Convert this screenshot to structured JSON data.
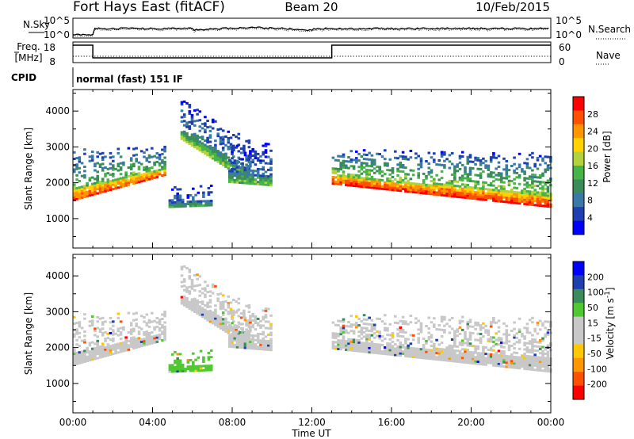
{
  "header": {
    "station": "Fort Hays East (fitACF)",
    "beam": "Beam 20",
    "date": "10/Feb/2015"
  },
  "params": {
    "nsky_label": "N.Sky",
    "nsearch_label": "N.Search",
    "freq_label_1": "Freq.",
    "freq_label_2": "[MHz]",
    "nave_label": "Nave",
    "cpid_label": "CPID",
    "cpid_value": "normal (fast) 151 IF",
    "noise_ticks_left": [
      "10^5",
      "10^0"
    ],
    "noise_ticks_right": [
      "10^5",
      "10^0"
    ],
    "freq_ticks": [
      "18",
      "8"
    ],
    "nave_ticks": [
      "60",
      "0"
    ]
  },
  "colors": {
    "power": [
      "#0000ff",
      "#1f3fb0",
      "#3a78a8",
      "#3c8c5a",
      "#46b446",
      "#b4d23c",
      "#ffd200",
      "#ff9600",
      "#ff5000",
      "#ff0000"
    ],
    "velocity": [
      "#ff0000",
      "#ff5000",
      "#ff9600",
      "#ffc800",
      "#c8c8c8",
      "#c8c8c8",
      "#50c832",
      "#3c8c5a",
      "#1f3fb0",
      "#0000ff"
    ]
  },
  "chart_data": [
    {
      "type": "heatmap",
      "title": "Power",
      "ylabel": "Slant Range [km]",
      "yticks": [
        1000,
        2000,
        3000,
        4000
      ],
      "ylim": [
        180,
        4600
      ],
      "xlim": [
        0,
        24
      ],
      "colorbar": {
        "label": "Power [dB]",
        "ticks": [
          "4",
          "8",
          "12",
          "16",
          "20",
          "24",
          "28"
        ],
        "range": [
          0,
          30
        ]
      },
      "echo_bands": [
        {
          "name": "early",
          "t_start": 0.0,
          "t_end": 4.6,
          "r_low_start": 1500,
          "r_low_end": 2200,
          "r_high_start": 2900,
          "r_high_end": 3000,
          "peak_dB": 26
        },
        {
          "name": "midday-arc",
          "t_start": 5.4,
          "t_end": 8.8,
          "r_low_start": 3200,
          "r_low_end": 2000,
          "r_high_start": 4300,
          "r_high_end": 3200,
          "peak_dB": 16
        },
        {
          "name": "afternoon-cluster",
          "t_start": 7.8,
          "t_end": 10.0,
          "r_low_start": 2000,
          "r_low_end": 1900,
          "r_high_start": 3000,
          "r_high_end": 3100,
          "peak_dB": 14
        },
        {
          "name": "patch-0500",
          "t_start": 4.8,
          "t_end": 7.0,
          "r_low_start": 1300,
          "r_low_end": 1350,
          "r_high_start": 1900,
          "r_high_end": 1900,
          "peak_dB": 12
        },
        {
          "name": "evening",
          "t_start": 13.0,
          "t_end": 24.0,
          "r_low_start": 1950,
          "r_low_end": 1300,
          "r_high_start": 2900,
          "r_high_end": 2800,
          "peak_dB": 28
        }
      ]
    },
    {
      "type": "heatmap",
      "title": "Velocity",
      "ylabel": "Slant Range [km]",
      "xlabel": "Time UT",
      "xticks": [
        "00:00",
        "04:00",
        "08:00",
        "12:00",
        "16:00",
        "20:00",
        "00:00"
      ],
      "yticks": [
        1000,
        2000,
        3000,
        4000
      ],
      "ylim": [
        180,
        4600
      ],
      "xlim": [
        0,
        24
      ],
      "colorbar": {
        "label": "Velocity [m s^-1]",
        "ticks": [
          "200",
          "100",
          "50",
          "15",
          "-15",
          "-50",
          "-100",
          "-200"
        ],
        "range": [
          -250,
          250
        ]
      },
      "dominant_values": [
        {
          "region": "early",
          "t_start": 0.0,
          "t_end": 4.6,
          "velocity": 0
        },
        {
          "region": "evening",
          "t_start": 13.0,
          "t_end": 24.0,
          "velocity": 0
        },
        {
          "region": "patch-0500",
          "t_start": 4.8,
          "t_end": 7.0,
          "velocity": 60
        }
      ]
    }
  ]
}
